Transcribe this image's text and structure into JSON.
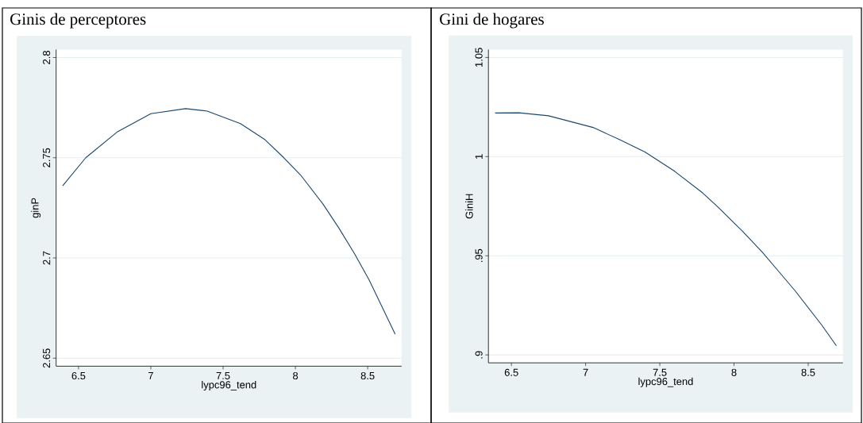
{
  "chart_data": [
    {
      "type": "line",
      "title": "Ginis de perceptores",
      "xlabel": "lypc96_tend",
      "ylabel": "ginP",
      "color": "#1a476f",
      "grid": "y",
      "x": [
        6.39,
        6.55,
        6.77,
        7.0,
        7.24,
        7.39,
        7.62,
        7.79,
        7.92,
        8.04,
        8.19,
        8.3,
        8.41,
        8.51,
        8.69
      ],
      "values": [
        2.736,
        2.75,
        2.763,
        2.772,
        2.7745,
        2.7733,
        2.767,
        2.759,
        2.75,
        2.741,
        2.727,
        2.715,
        2.702,
        2.689,
        2.662
      ],
      "xlim": [
        6.345,
        8.735
      ],
      "ylim": [
        2.646,
        2.804
      ],
      "xticks": [
        6.5,
        7,
        7.5,
        8,
        8.5
      ],
      "yticks": [
        2.65,
        2.7,
        2.75,
        2.8
      ]
    },
    {
      "type": "line",
      "title": "Gini de hogares",
      "xlabel": "lypc96_tend",
      "ylabel": "GiniH",
      "color": "#1a476f",
      "grid": "y",
      "x": [
        6.39,
        6.55,
        6.75,
        7.05,
        7.23,
        7.4,
        7.6,
        7.79,
        7.9,
        8.06,
        8.19,
        8.3,
        8.41,
        8.59,
        8.69
      ],
      "values": [
        1.022,
        1.0221,
        1.0206,
        1.0147,
        1.0085,
        1.0023,
        0.9926,
        0.9816,
        0.974,
        0.9622,
        0.9519,
        0.9422,
        0.9325,
        0.9152,
        0.9046
      ],
      "xlim": [
        6.345,
        8.734
      ],
      "ylim": [
        0.896,
        1.054
      ],
      "xticks": [
        6.5,
        7,
        7.5,
        8,
        8.5
      ],
      "yticks": [
        {
          "value": 0.9,
          "label": ".9"
        },
        {
          "value": 0.95,
          "label": ".95"
        },
        1,
        1.05
      ]
    }
  ]
}
